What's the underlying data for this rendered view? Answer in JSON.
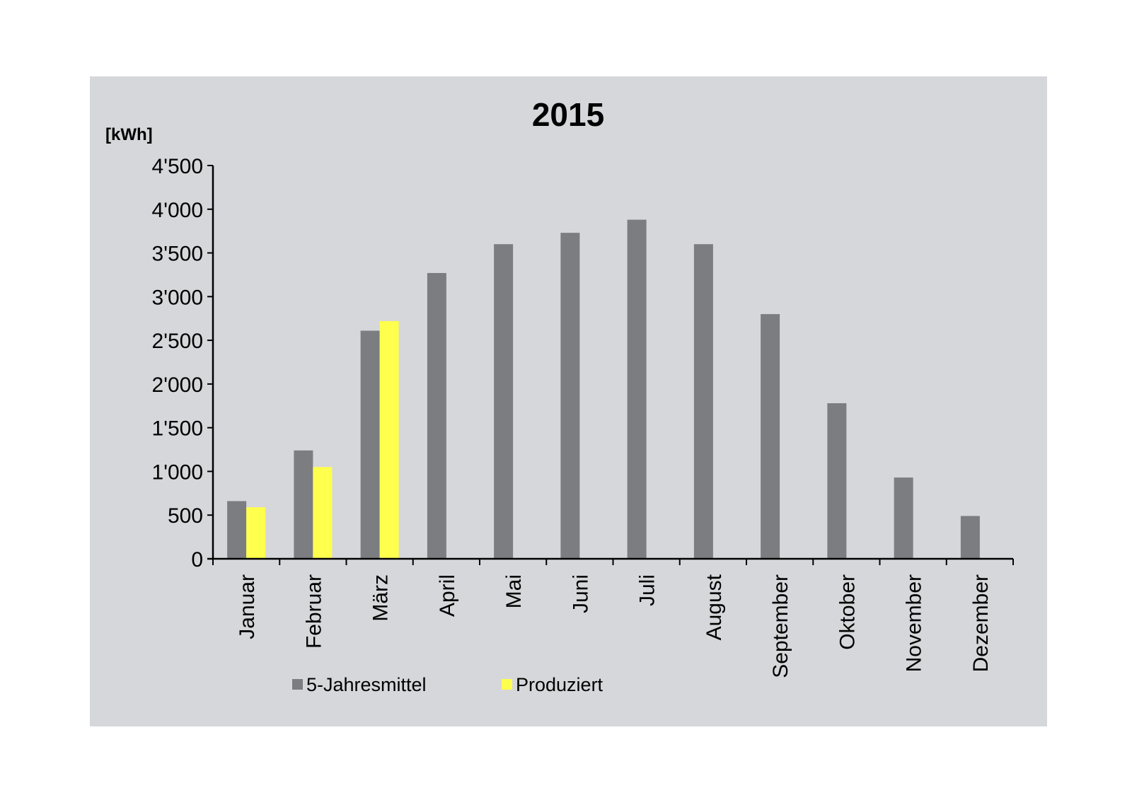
{
  "chart_data": {
    "type": "bar",
    "title": "2015",
    "ylabel": "[kWh]",
    "xlabel": "",
    "ylim": [
      0,
      4500
    ],
    "yticks": [
      0,
      500,
      1000,
      1500,
      2000,
      2500,
      3000,
      3500,
      4000,
      4500
    ],
    "ytick_labels": [
      "0",
      "500",
      "1'000",
      "1'500",
      "2'000",
      "2'500",
      "3'000",
      "3'500",
      "4'000",
      "4'500"
    ],
    "categories": [
      "Januar",
      "Februar",
      "März",
      "April",
      "Mai",
      "Juni",
      "Juli",
      "August",
      "September",
      "Oktober",
      "November",
      "Dezember"
    ],
    "series": [
      {
        "name": "5-Jahresmittel",
        "color": "#7b7d80",
        "values": [
          660,
          1240,
          2610,
          3270,
          3600,
          3730,
          3880,
          3600,
          2800,
          1780,
          930,
          490
        ]
      },
      {
        "name": "Produziert",
        "color": "#ffff4d",
        "values": [
          590,
          1050,
          2720,
          null,
          null,
          null,
          null,
          null,
          null,
          null,
          null,
          null
        ]
      }
    ],
    "grid": false,
    "legend_position": "bottom",
    "background_color": "#d6d7da"
  }
}
